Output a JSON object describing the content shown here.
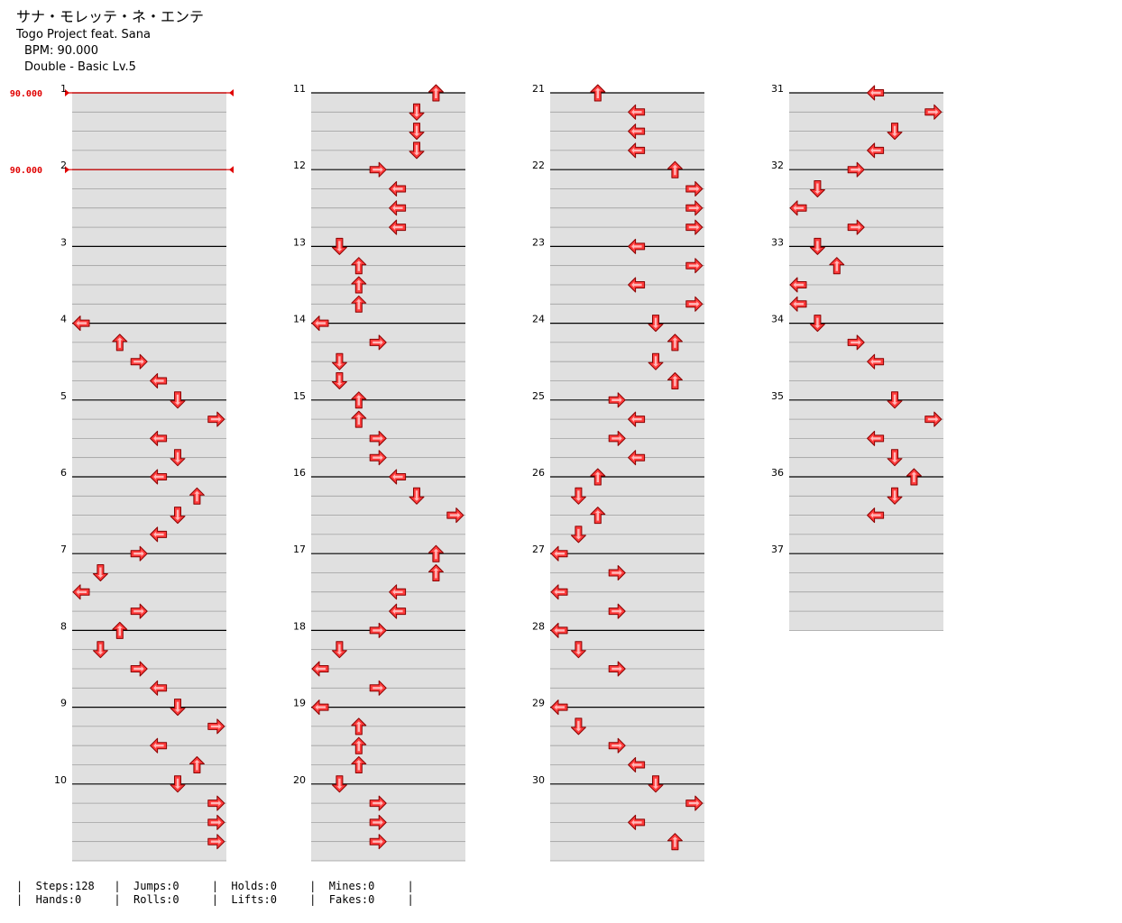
{
  "header": {
    "title": "サナ・モレッテ・ネ・エンテ",
    "artist": "Togo Project feat. Sana",
    "bpm_text": "BPM: 90.000",
    "difficulty_text": "Double - Basic Lv.5"
  },
  "bpm_markers": [
    {
      "measure": 1,
      "label": "90.000"
    },
    {
      "measure": 2,
      "label": "90.000"
    }
  ],
  "colors": {
    "arrow": "#ff3b3b",
    "bpm": "#e00000",
    "band": "#e0e0e0"
  },
  "measure_numbers": [
    "1",
    "2",
    "3",
    "4",
    "5",
    "6",
    "7",
    "8",
    "9",
    "10",
    "11",
    "12",
    "13",
    "14",
    "15",
    "16",
    "17",
    "18",
    "19",
    "20",
    "21",
    "22",
    "23",
    "24",
    "25",
    "26",
    "27",
    "28",
    "29",
    "30",
    "31",
    "32",
    "33",
    "34",
    "35",
    "36",
    "37"
  ],
  "total_measures": 37,
  "rows_per_measure": 4,
  "notes": [
    [
      4,
      0,
      0,
      "left"
    ],
    [
      4,
      1,
      2,
      "up"
    ],
    [
      4,
      2,
      3,
      "right"
    ],
    [
      4,
      3,
      4,
      "left"
    ],
    [
      5,
      0,
      5,
      "down"
    ],
    [
      5,
      1,
      7,
      "right"
    ],
    [
      5,
      2,
      4,
      "left"
    ],
    [
      5,
      3,
      5,
      "down"
    ],
    [
      6,
      0,
      4,
      "left"
    ],
    [
      6,
      1,
      6,
      "up"
    ],
    [
      6,
      2,
      5,
      "down"
    ],
    [
      6,
      3,
      4,
      "left"
    ],
    [
      7,
      0,
      3,
      "right"
    ],
    [
      7,
      1,
      1,
      "down"
    ],
    [
      7,
      2,
      0,
      "left"
    ],
    [
      7,
      3,
      3,
      "right"
    ],
    [
      8,
      0,
      2,
      "up"
    ],
    [
      8,
      1,
      1,
      "down"
    ],
    [
      8,
      2,
      3,
      "right"
    ],
    [
      8,
      3,
      4,
      "left"
    ],
    [
      9,
      0,
      5,
      "down"
    ],
    [
      9,
      1,
      7,
      "right"
    ],
    [
      9,
      2,
      4,
      "left"
    ],
    [
      9,
      3,
      6,
      "up"
    ],
    [
      10,
      0,
      5,
      "down"
    ],
    [
      10,
      1,
      7,
      "right"
    ],
    [
      10,
      2,
      7,
      "right"
    ],
    [
      10,
      3,
      7,
      "right"
    ],
    [
      11,
      0,
      6,
      "up"
    ],
    [
      11,
      1,
      5,
      "down"
    ],
    [
      11,
      2,
      5,
      "down"
    ],
    [
      11,
      3,
      5,
      "down"
    ],
    [
      12,
      0,
      3,
      "right"
    ],
    [
      12,
      1,
      4,
      "left"
    ],
    [
      12,
      2,
      4,
      "left"
    ],
    [
      12,
      3,
      4,
      "left"
    ],
    [
      13,
      0,
      1,
      "down"
    ],
    [
      13,
      1,
      2,
      "up"
    ],
    [
      13,
      2,
      2,
      "up"
    ],
    [
      13,
      3,
      2,
      "up"
    ],
    [
      14,
      0,
      0,
      "left"
    ],
    [
      14,
      1,
      3,
      "right"
    ],
    [
      14,
      2,
      1,
      "down"
    ],
    [
      14,
      3,
      1,
      "down"
    ],
    [
      15,
      0,
      2,
      "up"
    ],
    [
      15,
      1,
      2,
      "up"
    ],
    [
      15,
      2,
      3,
      "right"
    ],
    [
      15,
      3,
      3,
      "right"
    ],
    [
      16,
      0,
      4,
      "left"
    ],
    [
      16,
      1,
      5,
      "down"
    ],
    [
      16,
      2,
      7,
      "right"
    ],
    [
      17,
      0,
      6,
      "up"
    ],
    [
      17,
      1,
      6,
      "up"
    ],
    [
      17,
      2,
      4,
      "left"
    ],
    [
      17,
      3,
      4,
      "left"
    ],
    [
      18,
      0,
      3,
      "right"
    ],
    [
      18,
      1,
      1,
      "down"
    ],
    [
      18,
      2,
      0,
      "left"
    ],
    [
      18,
      3,
      3,
      "right"
    ],
    [
      19,
      0,
      0,
      "left"
    ],
    [
      19,
      1,
      2,
      "up"
    ],
    [
      19,
      2,
      2,
      "up"
    ],
    [
      19,
      3,
      2,
      "up"
    ],
    [
      20,
      0,
      1,
      "down"
    ],
    [
      20,
      1,
      3,
      "right"
    ],
    [
      20,
      2,
      3,
      "right"
    ],
    [
      20,
      3,
      3,
      "right"
    ],
    [
      21,
      0,
      2,
      "up"
    ],
    [
      21,
      1,
      4,
      "left"
    ],
    [
      21,
      2,
      4,
      "left"
    ],
    [
      21,
      3,
      4,
      "left"
    ],
    [
      22,
      0,
      6,
      "up"
    ],
    [
      22,
      1,
      7,
      "right"
    ],
    [
      22,
      2,
      7,
      "right"
    ],
    [
      22,
      3,
      7,
      "right"
    ],
    [
      23,
      0,
      4,
      "left"
    ],
    [
      23,
      1,
      7,
      "right"
    ],
    [
      23,
      2,
      4,
      "left"
    ],
    [
      23,
      3,
      7,
      "right"
    ],
    [
      24,
      0,
      5,
      "down"
    ],
    [
      24,
      1,
      6,
      "up"
    ],
    [
      24,
      2,
      5,
      "down"
    ],
    [
      24,
      3,
      6,
      "up"
    ],
    [
      25,
      0,
      3,
      "right"
    ],
    [
      25,
      1,
      4,
      "left"
    ],
    [
      25,
      2,
      3,
      "right"
    ],
    [
      25,
      3,
      4,
      "left"
    ],
    [
      26,
      0,
      2,
      "up"
    ],
    [
      26,
      1,
      1,
      "down"
    ],
    [
      26,
      2,
      2,
      "up"
    ],
    [
      26,
      3,
      1,
      "down"
    ],
    [
      27,
      0,
      0,
      "left"
    ],
    [
      27,
      1,
      3,
      "right"
    ],
    [
      27,
      2,
      0,
      "left"
    ],
    [
      27,
      3,
      3,
      "right"
    ],
    [
      28,
      0,
      0,
      "left"
    ],
    [
      28,
      1,
      1,
      "down"
    ],
    [
      28,
      2,
      3,
      "right"
    ],
    [
      29,
      0,
      0,
      "left"
    ],
    [
      29,
      1,
      1,
      "down"
    ],
    [
      29,
      2,
      3,
      "right"
    ],
    [
      29,
      3,
      4,
      "left"
    ],
    [
      30,
      0,
      5,
      "down"
    ],
    [
      30,
      1,
      7,
      "right"
    ],
    [
      30,
      2,
      4,
      "left"
    ],
    [
      30,
      3,
      6,
      "up"
    ],
    [
      31,
      0,
      4,
      "left"
    ],
    [
      31,
      1,
      7,
      "right"
    ],
    [
      31,
      2,
      5,
      "down"
    ],
    [
      31,
      3,
      4,
      "left"
    ],
    [
      32,
      0,
      3,
      "right"
    ],
    [
      32,
      1,
      1,
      "down"
    ],
    [
      32,
      2,
      0,
      "left"
    ],
    [
      32,
      3,
      3,
      "right"
    ],
    [
      33,
      0,
      1,
      "down"
    ],
    [
      33,
      1,
      2,
      "up"
    ],
    [
      33,
      2,
      0,
      "left"
    ],
    [
      33,
      3,
      0,
      "left"
    ],
    [
      34,
      0,
      1,
      "down"
    ],
    [
      34,
      1,
      3,
      "right"
    ],
    [
      34,
      2,
      4,
      "left"
    ],
    [
      35,
      0,
      5,
      "down"
    ],
    [
      35,
      1,
      7,
      "right"
    ],
    [
      35,
      2,
      4,
      "left"
    ],
    [
      35,
      3,
      5,
      "down"
    ],
    [
      36,
      0,
      6,
      "up"
    ],
    [
      36,
      1,
      5,
      "down"
    ],
    [
      36,
      2,
      4,
      "left"
    ]
  ],
  "stats": {
    "line1": "|  Steps:128   |  Jumps:0     |  Holds:0     |  Mines:0     |",
    "line2": "|  Hands:0     |  Rolls:0     |  Lifts:0     |  Fakes:0     |"
  }
}
